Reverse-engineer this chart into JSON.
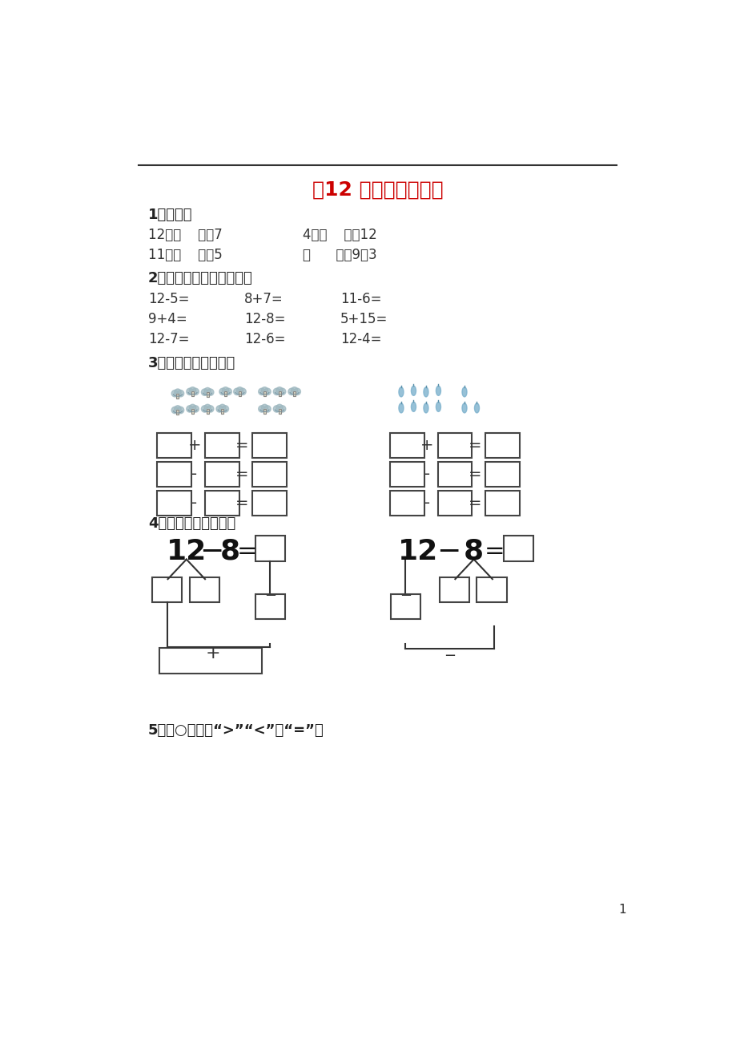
{
  "title": "〈12 减几」基础习题",
  "title_color": "#cc0000",
  "section1": "1、填空。",
  "s1_line1_left": "12－（    ）］7",
  "s1_line1_right": "4＋（    ）］12",
  "s1_line2_left": "11－（    ）］5",
  "s1_line2_right": "（      ）－9］3",
  "section2": "2、写出下列算式的得数。",
  "s2_r1": [
    "12-5=",
    "8+7=",
    "11-6="
  ],
  "s2_r2": [
    "9+4=",
    "12-8=",
    "5+15="
  ],
  "s2_r3": [
    "12-7=",
    "12-6=",
    "12-4="
  ],
  "section3": "3、数一数，填一填。",
  "section4": "4、想一想，填一填。",
  "section5": "5、在○里填上“>”“<”或“=”。",
  "page_num": "1",
  "bg_color": "#ffffff"
}
